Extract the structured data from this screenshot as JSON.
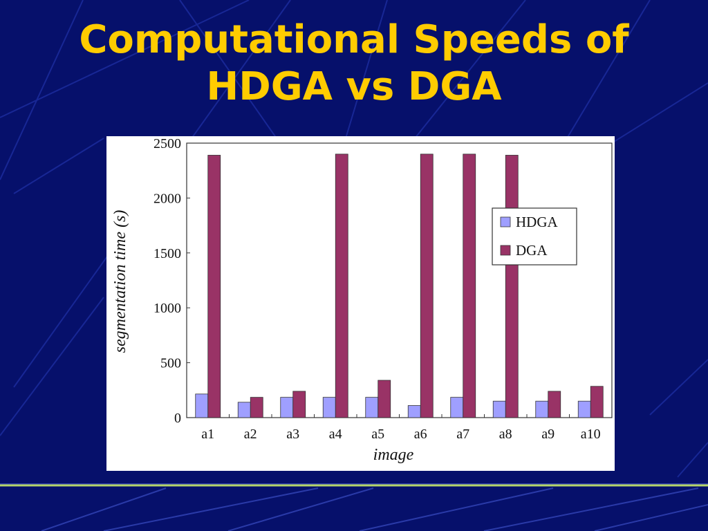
{
  "slide": {
    "title_line1": "Computational Speeds of",
    "title_line2": "HDGA vs DGA"
  },
  "colors": {
    "background": "#06106b",
    "title": "#ffcc00",
    "hdga": "#9f9fff",
    "dga": "#993366",
    "divider": "#b6d66a"
  },
  "chart_data": {
    "type": "bar",
    "categories": [
      "a1",
      "a2",
      "a3",
      "a4",
      "a5",
      "a6",
      "a7",
      "a8",
      "a9",
      "a10"
    ],
    "series": [
      {
        "name": "HDGA",
        "color": "#9f9fff",
        "values": [
          215,
          140,
          185,
          185,
          185,
          110,
          185,
          150,
          150,
          150
        ]
      },
      {
        "name": "DGA",
        "color": "#993366",
        "values": [
          2390,
          185,
          240,
          2400,
          340,
          2400,
          2400,
          2390,
          240,
          285
        ]
      }
    ],
    "xlabel": "image",
    "ylabel": "segmentation time (s)",
    "ylim": [
      0,
      2500
    ],
    "yticks": [
      0,
      500,
      1000,
      1500,
      2000,
      2500
    ],
    "grid": false,
    "legend": "right"
  }
}
